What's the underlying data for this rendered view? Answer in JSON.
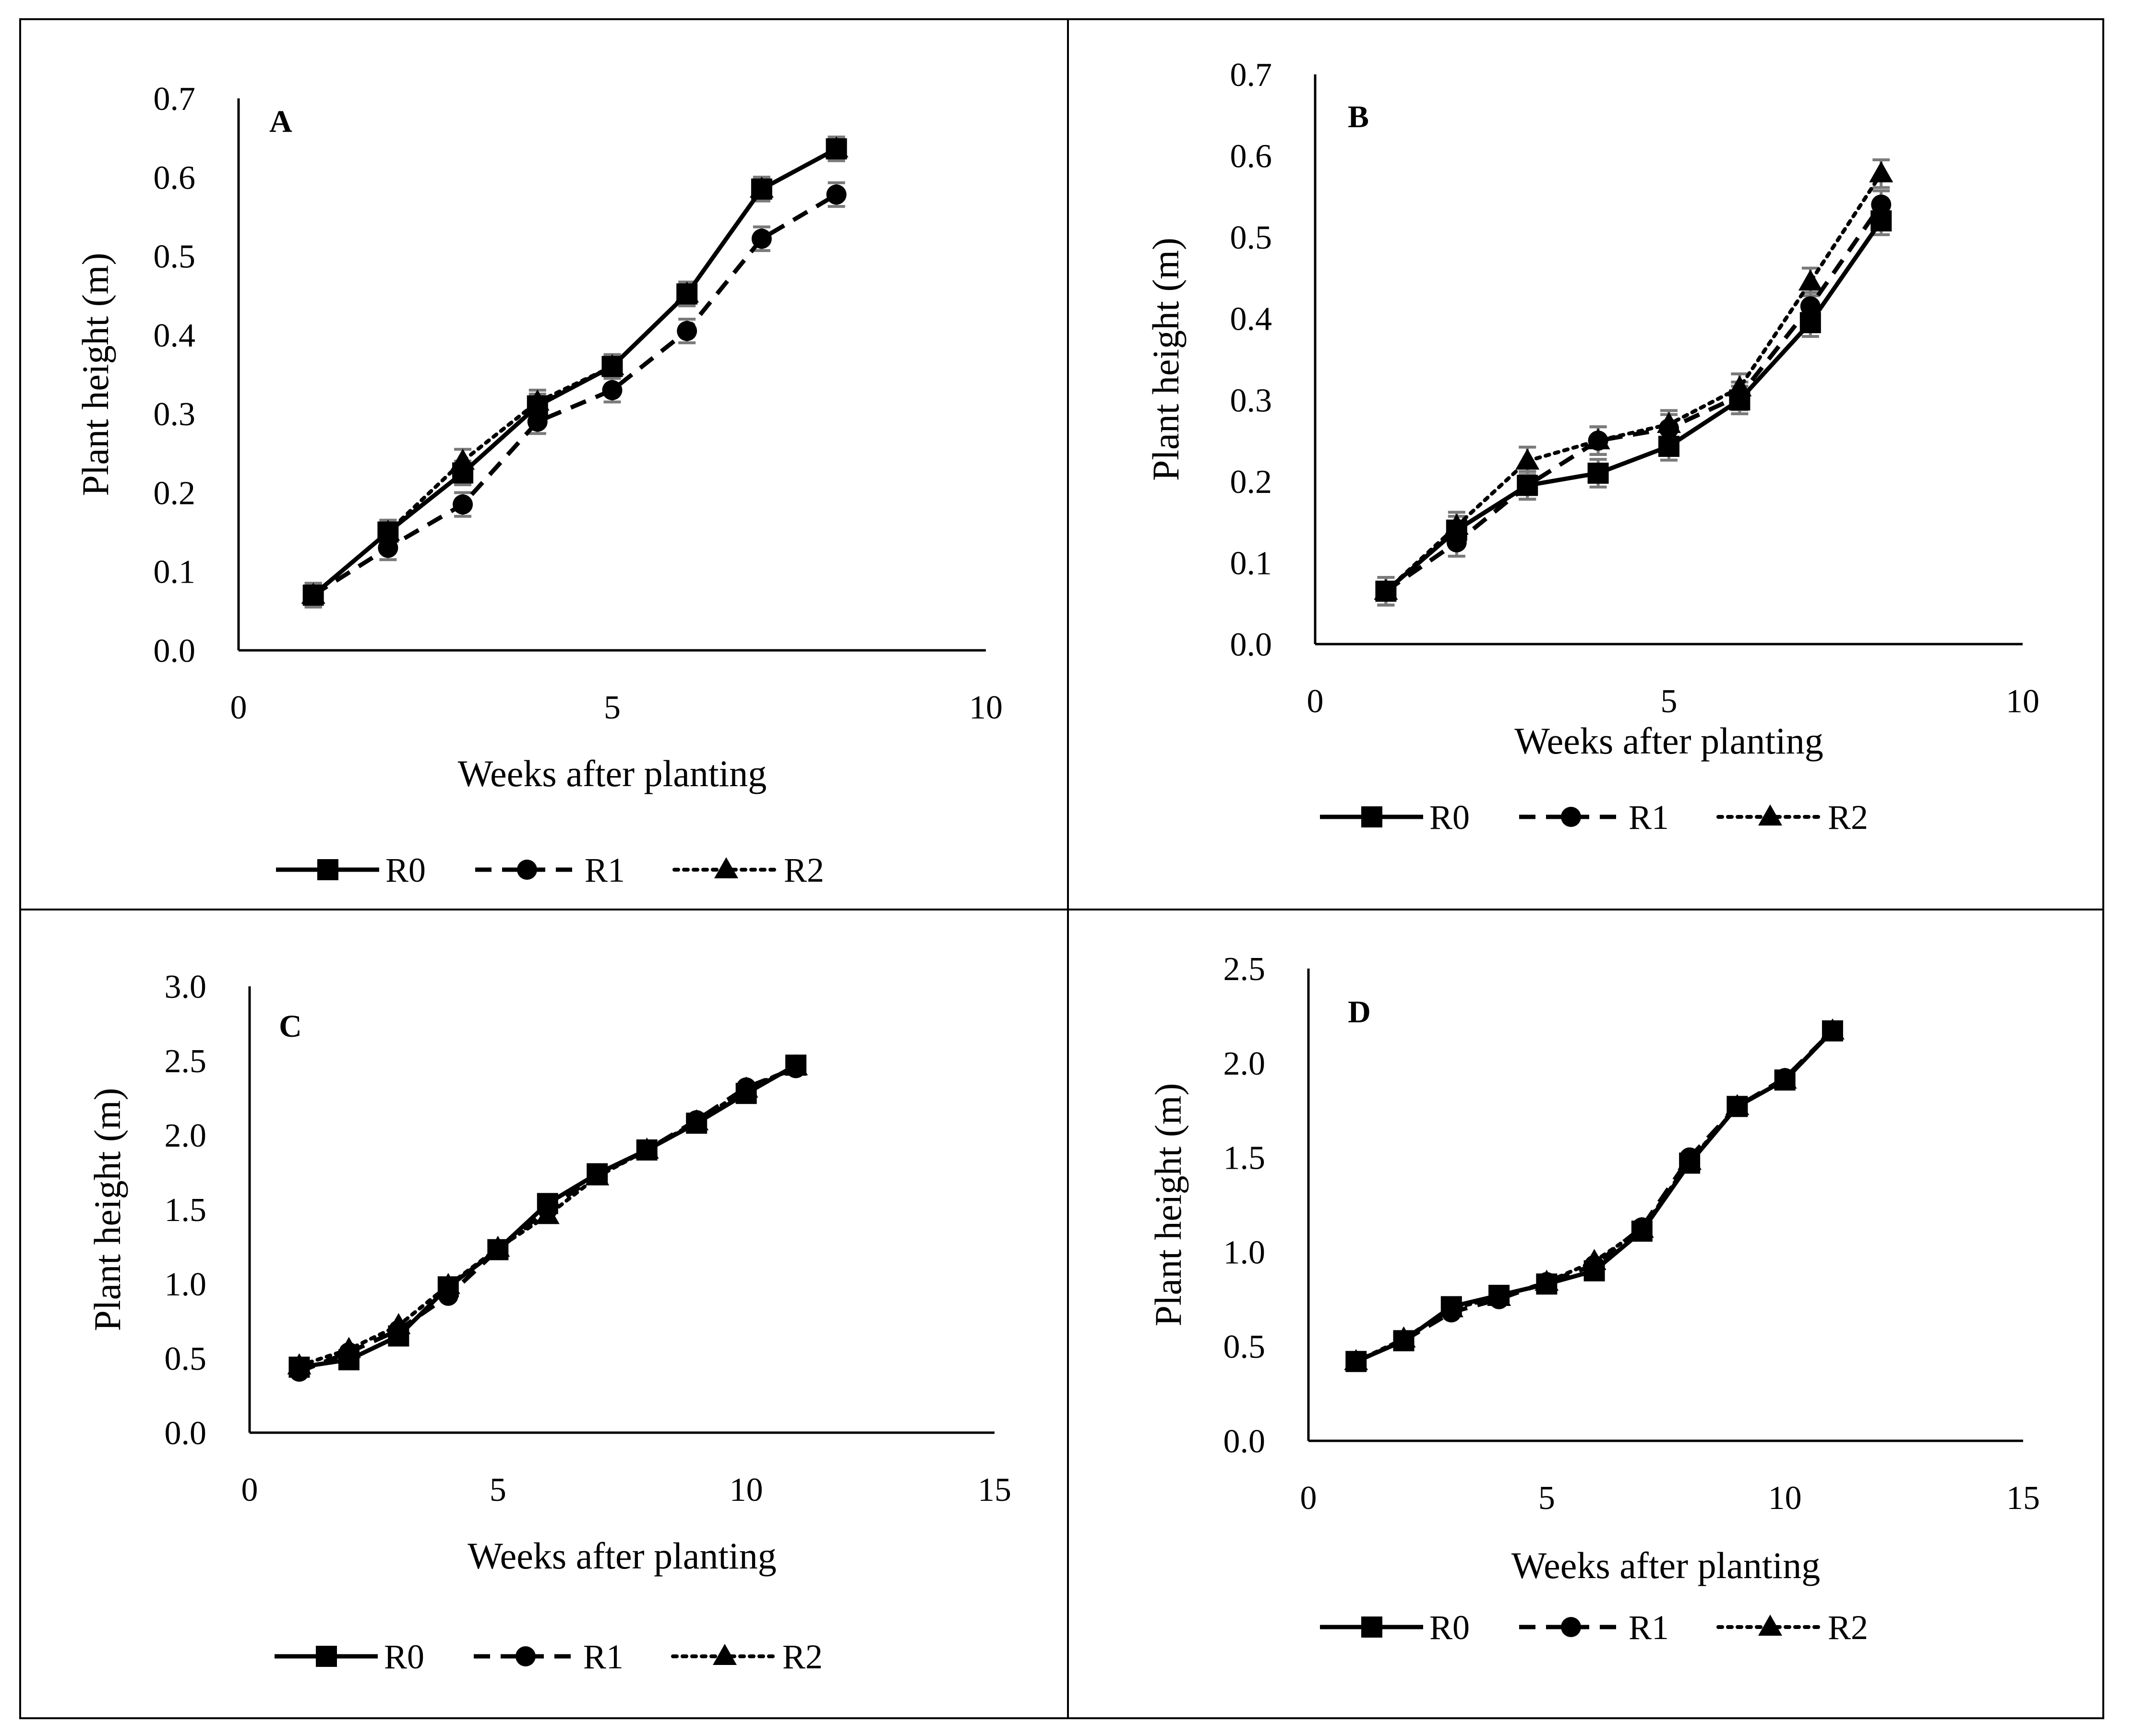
{
  "figure": {
    "panels": [
      {
        "chart_data": {
          "type": "line",
          "panel_label": "A",
          "xlabel": "Weeks after planting",
          "ylabel": "Plant height (m)",
          "xlim": [
            0,
            10
          ],
          "ylim": [
            0,
            0.7
          ],
          "xticks": [
            0,
            5,
            10
          ],
          "xtick_labels": [
            "0",
            "5",
            "10"
          ],
          "yticks": [
            0,
            0.1,
            0.2,
            0.3,
            0.4,
            0.5,
            0.6,
            0.7
          ],
          "ytick_labels": [
            "0.0",
            "0.1",
            "0.2",
            "0.3",
            "0.4",
            "0.5",
            "0.6",
            "0.7"
          ],
          "grid": false,
          "legend_position": "bottom",
          "error_bars": 0.015,
          "series": [
            {
              "name": "R0",
              "marker": "square",
              "line": "solid",
              "x": [
                1,
                2,
                3,
                4,
                5,
                6,
                7,
                8
              ],
              "values": [
                0.07,
                0.15,
                0.225,
                0.31,
                0.36,
                0.452,
                0.585,
                0.636
              ]
            },
            {
              "name": "R1",
              "marker": "circle",
              "line": "dashed",
              "x": [
                1,
                2,
                3,
                4,
                5,
                6,
                7,
                8
              ],
              "values": [
                0.07,
                0.13,
                0.185,
                0.29,
                0.33,
                0.405,
                0.522,
                0.578
              ]
            },
            {
              "name": "R2",
              "marker": "triangle",
              "line": "dotted",
              "x": [
                1,
                2,
                3,
                4,
                5,
                6,
                7,
                8
              ],
              "values": [
                0.07,
                0.15,
                0.24,
                0.315,
                0.36,
                0.452,
                0.585,
                0.636
              ]
            }
          ]
        }
      },
      {
        "chart_data": {
          "type": "line",
          "panel_label": "B",
          "xlabel": "Weeks after planting",
          "ylabel": "Plant height (m)",
          "xlim": [
            0,
            10
          ],
          "ylim": [
            0,
            0.7
          ],
          "xticks": [
            0,
            5,
            10
          ],
          "xtick_labels": [
            "0",
            "5",
            "10"
          ],
          "yticks": [
            0,
            0.1,
            0.2,
            0.3,
            0.4,
            0.5,
            0.6,
            0.7
          ],
          "ytick_labels": [
            "0.0",
            "0.1",
            "0.2",
            "0.3",
            "0.4",
            "0.5",
            "0.6",
            "0.7"
          ],
          "grid": false,
          "legend_position": "bottom",
          "error_bars": 0.017,
          "series": [
            {
              "name": "R0",
              "marker": "square",
              "line": "solid",
              "x": [
                1,
                2,
                3,
                4,
                5,
                6,
                7,
                8
              ],
              "values": [
                0.065,
                0.14,
                0.195,
                0.21,
                0.243,
                0.3,
                0.395,
                0.52
              ]
            },
            {
              "name": "R1",
              "marker": "circle",
              "line": "dashed",
              "x": [
                1,
                2,
                3,
                4,
                5,
                6,
                7,
                8
              ],
              "values": [
                0.065,
                0.125,
                0.195,
                0.25,
                0.265,
                0.305,
                0.415,
                0.54
              ]
            },
            {
              "name": "R2",
              "marker": "triangle",
              "line": "dotted",
              "x": [
                1,
                2,
                3,
                4,
                5,
                6,
                7,
                8
              ],
              "values": [
                0.065,
                0.145,
                0.225,
                0.25,
                0.27,
                0.315,
                0.445,
                0.578
              ]
            }
          ]
        }
      },
      {
        "chart_data": {
          "type": "line",
          "panel_label": "C",
          "xlabel": "Weeks after planting",
          "ylabel": "Plant height (m)",
          "xlim": [
            0,
            15
          ],
          "ylim": [
            0,
            3.0
          ],
          "xticks": [
            0,
            5,
            10,
            15
          ],
          "xtick_labels": [
            "0",
            "5",
            "10",
            "15"
          ],
          "yticks": [
            0,
            0.5,
            1.0,
            1.5,
            2.0,
            2.5,
            3.0
          ],
          "ytick_labels": [
            "0.0",
            "0.5",
            "1.0",
            "1.5",
            "2.0",
            "2.5",
            "3.0"
          ],
          "grid": false,
          "legend_position": "bottom",
          "error_bars": 0,
          "series": [
            {
              "name": "R0",
              "marker": "square",
              "line": "solid",
              "x": [
                1,
                2,
                3,
                4,
                5,
                6,
                7,
                8,
                9,
                10,
                11
              ],
              "values": [
                0.44,
                0.49,
                0.65,
                0.98,
                1.23,
                1.54,
                1.74,
                1.9,
                2.08,
                2.28,
                2.47
              ]
            },
            {
              "name": "R1",
              "marker": "circle",
              "line": "dashed",
              "x": [
                1,
                2,
                3,
                4,
                5,
                6,
                7,
                8,
                9,
                10,
                11
              ],
              "values": [
                0.41,
                0.54,
                0.69,
                0.92,
                1.23,
                1.5,
                1.73,
                1.9,
                2.1,
                2.32,
                2.45
              ]
            },
            {
              "name": "R2",
              "marker": "triangle",
              "line": "dotted",
              "x": [
                1,
                2,
                3,
                4,
                5,
                6,
                7,
                8,
                9,
                10,
                11
              ],
              "values": [
                0.45,
                0.56,
                0.72,
                0.99,
                1.24,
                1.46,
                1.72,
                1.9,
                2.09,
                2.31,
                2.46
              ]
            }
          ]
        }
      },
      {
        "chart_data": {
          "type": "line",
          "panel_label": "D",
          "xlabel": "Weeks after planting",
          "ylabel": "Plant height (m)",
          "xlim": [
            0,
            15
          ],
          "ylim": [
            0,
            2.5
          ],
          "xticks": [
            0,
            5,
            10,
            15
          ],
          "xtick_labels": [
            "0",
            "5",
            "10",
            "15"
          ],
          "yticks": [
            0,
            0.5,
            1.0,
            1.5,
            2.0,
            2.5
          ],
          "ytick_labels": [
            "0.0",
            "0.5",
            "1.0",
            "1.5",
            "2.0",
            "2.5"
          ],
          "grid": false,
          "legend_position": "bottom",
          "error_bars": 0,
          "series": [
            {
              "name": "R0",
              "marker": "square",
              "line": "solid",
              "x": [
                1,
                2,
                3,
                4,
                5,
                6,
                7,
                8,
                9,
                10,
                11
              ],
              "values": [
                0.42,
                0.53,
                0.71,
                0.77,
                0.83,
                0.9,
                1.11,
                1.47,
                1.77,
                1.91,
                2.17
              ]
            },
            {
              "name": "R1",
              "marker": "circle",
              "line": "dashed",
              "x": [
                1,
                2,
                3,
                4,
                5,
                6,
                7,
                8,
                9,
                10,
                11
              ],
              "values": [
                0.42,
                0.53,
                0.68,
                0.75,
                0.84,
                0.93,
                1.13,
                1.5,
                1.77,
                1.92,
                2.17
              ]
            },
            {
              "name": "R2",
              "marker": "triangle",
              "line": "dotted",
              "x": [
                1,
                2,
                3,
                4,
                5,
                6,
                7,
                8,
                9,
                10,
                11
              ],
              "values": [
                0.42,
                0.54,
                0.7,
                0.76,
                0.84,
                0.95,
                1.12,
                1.48,
                1.77,
                1.91,
                2.17
              ]
            }
          ]
        }
      }
    ]
  }
}
